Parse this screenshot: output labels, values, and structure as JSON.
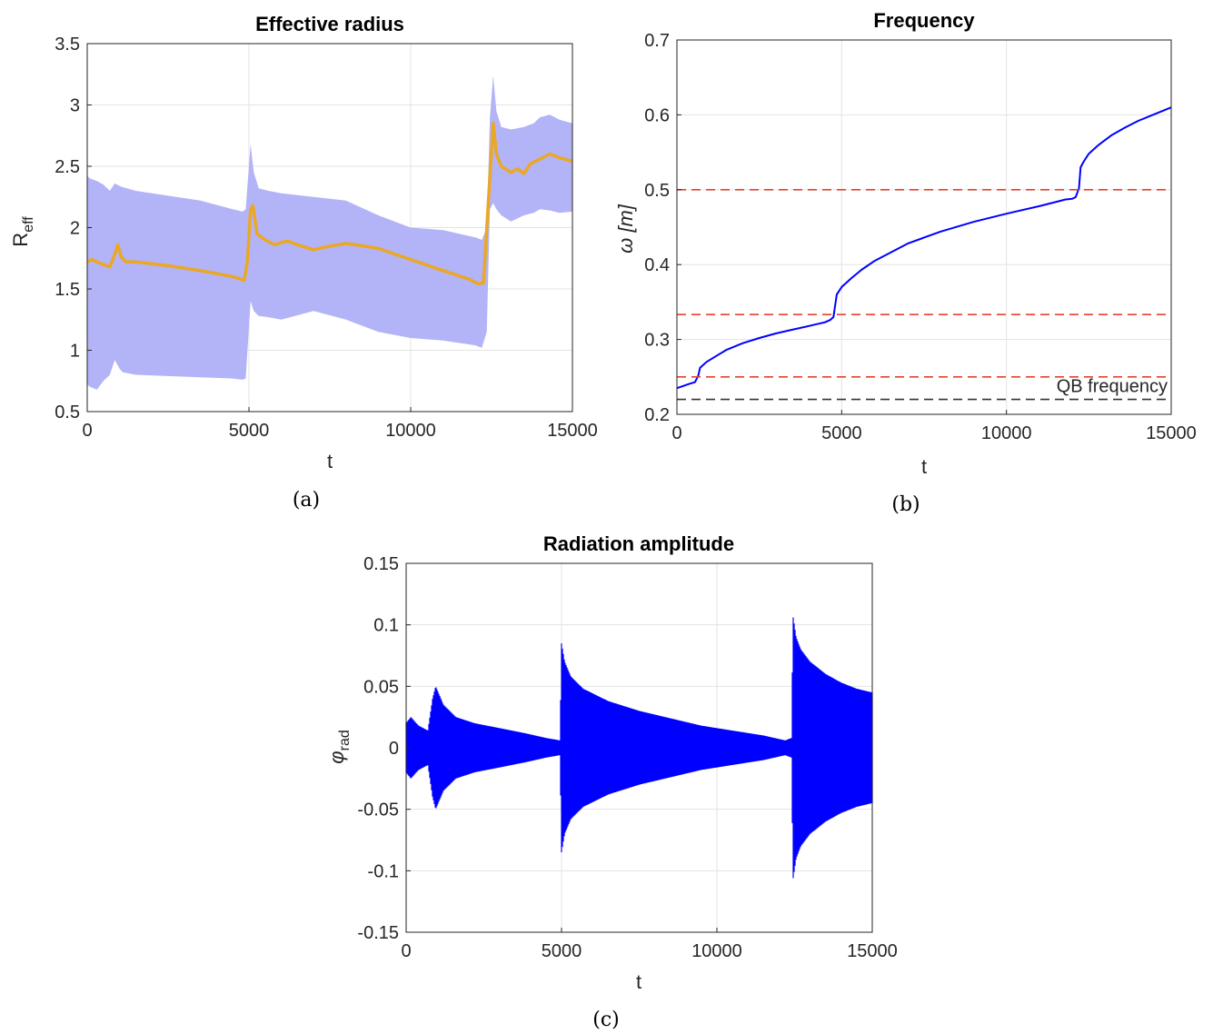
{
  "chart_data": [
    {
      "type": "line",
      "panel_label": "(a)",
      "title": "Effective radius",
      "xlabel": "t",
      "ylabel_main": "R",
      "ylabel_sub": "eff",
      "xlim": [
        0,
        15000
      ],
      "ylim": [
        0.5,
        3.5
      ],
      "xticks": [
        0,
        5000,
        10000,
        15000
      ],
      "xtick_labels": [
        "0",
        "5000",
        "10000",
        "15000"
      ],
      "yticks": [
        0.5,
        1,
        1.5,
        2,
        2.5,
        3,
        3.5
      ],
      "ytick_labels": [
        "0.5",
        "1",
        "1.5",
        "2",
        "2.5",
        "3",
        "3.5"
      ],
      "grid": true,
      "band_color": "#b3b3f8",
      "line_color": "#eaa823",
      "series": [
        {
          "kind": "band",
          "x": [
            0,
            100,
            300,
            500,
            700,
            850,
            1000,
            1100,
            1500,
            2500,
            3500,
            4500,
            4800,
            4900,
            5050,
            5150,
            5300,
            5600,
            6000,
            7000,
            8000,
            9000,
            10000,
            11000,
            12000,
            12200,
            12350,
            12450,
            12550,
            12650,
            12800,
            13100,
            13500,
            13800,
            14000,
            14300,
            14600,
            15000
          ],
          "upper": [
            2.42,
            2.4,
            2.38,
            2.35,
            2.3,
            2.36,
            2.34,
            2.33,
            2.3,
            2.26,
            2.22,
            2.15,
            2.13,
            2.15,
            2.68,
            2.45,
            2.32,
            2.3,
            2.28,
            2.25,
            2.22,
            2.1,
            2.0,
            1.98,
            1.92,
            1.9,
            2.0,
            2.9,
            3.24,
            2.95,
            2.82,
            2.8,
            2.82,
            2.85,
            2.9,
            2.92,
            2.88,
            2.85
          ],
          "lower": [
            0.72,
            0.7,
            0.68,
            0.75,
            0.8,
            0.92,
            0.85,
            0.82,
            0.8,
            0.79,
            0.78,
            0.77,
            0.76,
            0.77,
            1.4,
            1.32,
            1.28,
            1.27,
            1.25,
            1.32,
            1.25,
            1.15,
            1.1,
            1.08,
            1.04,
            1.02,
            1.15,
            2.15,
            2.2,
            2.15,
            2.1,
            2.05,
            2.1,
            2.12,
            2.15,
            2.14,
            2.12,
            2.13
          ]
        },
        {
          "kind": "line",
          "x": [
            0,
            150,
            300,
            500,
            700,
            850,
            950,
            1050,
            1200,
            1500,
            2500,
            3500,
            4500,
            4850,
            4950,
            5050,
            5120,
            5250,
            5500,
            5800,
            6000,
            6200,
            6500,
            7000,
            7500,
            8000,
            8300,
            9000,
            10000,
            11000,
            11800,
            12100,
            12250,
            12400,
            12550,
            12650,
            12800,
            13100,
            13300,
            13500,
            13700,
            14000,
            14300,
            14600,
            15000
          ],
          "y": [
            1.72,
            1.74,
            1.72,
            1.7,
            1.68,
            1.78,
            1.86,
            1.76,
            1.72,
            1.72,
            1.69,
            1.65,
            1.6,
            1.57,
            1.72,
            2.15,
            2.18,
            1.95,
            1.9,
            1.86,
            1.88,
            1.89,
            1.86,
            1.82,
            1.85,
            1.87,
            1.86,
            1.83,
            1.74,
            1.65,
            1.58,
            1.54,
            1.55,
            2.2,
            2.85,
            2.6,
            2.5,
            2.45,
            2.48,
            2.44,
            2.52,
            2.56,
            2.6,
            2.57,
            2.54
          ]
        }
      ]
    },
    {
      "type": "line",
      "panel_label": "(b)",
      "title": "Frequency",
      "xlabel": "t",
      "ylabel": "ω [m]",
      "xlim": [
        0,
        15000
      ],
      "ylim": [
        0.2,
        0.7
      ],
      "xticks": [
        0,
        5000,
        10000,
        15000
      ],
      "xtick_labels": [
        "0",
        "5000",
        "10000",
        "15000"
      ],
      "yticks": [
        0.2,
        0.3,
        0.4,
        0.5,
        0.6,
        0.7
      ],
      "ytick_labels": [
        "0.2",
        "0.3",
        "0.4",
        "0.5",
        "0.6",
        "0.7"
      ],
      "grid": true,
      "line_color": "#0000ff",
      "series": [
        {
          "kind": "line",
          "x": [
            0,
            200,
            400,
            550,
            650,
            700,
            900,
            1200,
            1500,
            2000,
            2500,
            3000,
            3500,
            4000,
            4300,
            4500,
            4650,
            4750,
            4800,
            4850,
            5000,
            5300,
            5600,
            6000,
            7000,
            8000,
            9000,
            10000,
            11000,
            11800,
            12000,
            12100,
            12200,
            12250,
            12350,
            12500,
            12800,
            13200,
            13600,
            14000,
            14500,
            15000
          ],
          "y": [
            0.235,
            0.238,
            0.241,
            0.243,
            0.252,
            0.262,
            0.27,
            0.278,
            0.286,
            0.295,
            0.302,
            0.308,
            0.313,
            0.318,
            0.321,
            0.323,
            0.326,
            0.33,
            0.345,
            0.36,
            0.37,
            0.382,
            0.393,
            0.405,
            0.428,
            0.444,
            0.457,
            0.468,
            0.478,
            0.487,
            0.488,
            0.49,
            0.502,
            0.53,
            0.538,
            0.548,
            0.56,
            0.573,
            0.583,
            0.592,
            0.601,
            0.61
          ]
        },
        {
          "kind": "hline",
          "y": 0.5,
          "color": "#e8412e",
          "dash": true
        },
        {
          "kind": "hline",
          "y": 0.3333,
          "color": "#e8412e",
          "dash": true
        },
        {
          "kind": "hline",
          "y": 0.25,
          "color": "#e8412e",
          "dash": true
        },
        {
          "kind": "hline",
          "y": 0.22,
          "color": "#333333",
          "dash": true,
          "label": "QB frequency"
        }
      ]
    },
    {
      "type": "line",
      "panel_label": "(c)",
      "title": "Radiation amplitude",
      "xlabel": "t",
      "ylabel_main": "φ",
      "ylabel_sub": "rad",
      "xlim": [
        0,
        15000
      ],
      "ylim": [
        -0.15,
        0.15
      ],
      "xticks": [
        0,
        5000,
        10000,
        15000
      ],
      "xtick_labels": [
        "0",
        "5000",
        "10000",
        "15000"
      ],
      "yticks": [
        -0.15,
        -0.1,
        -0.05,
        0,
        0.05,
        0.1,
        0.15
      ],
      "ytick_labels": [
        "-0.15",
        "-0.1",
        "-0.05",
        "0",
        "0.05",
        "0.1",
        "0.15"
      ],
      "grid": true,
      "line_color": "#0000ff",
      "series": [
        {
          "kind": "envelope",
          "x": [
            0,
            150,
            400,
            700,
            850,
            950,
            1200,
            1600,
            2200,
            3000,
            3800,
            4500,
            4950,
            5000,
            5100,
            5300,
            5700,
            6500,
            7500,
            8500,
            9500,
            10500,
            11500,
            12200,
            12400,
            12450,
            12550,
            12700,
            13000,
            13500,
            14000,
            14500,
            15000
          ],
          "amp": [
            0.02,
            0.025,
            0.018,
            0.014,
            0.04,
            0.05,
            0.035,
            0.025,
            0.02,
            0.016,
            0.012,
            0.008,
            0.006,
            0.085,
            0.07,
            0.058,
            0.048,
            0.038,
            0.03,
            0.024,
            0.018,
            0.014,
            0.01,
            0.006,
            0.008,
            0.107,
            0.09,
            0.08,
            0.07,
            0.06,
            0.053,
            0.048,
            0.045
          ]
        }
      ]
    }
  ]
}
